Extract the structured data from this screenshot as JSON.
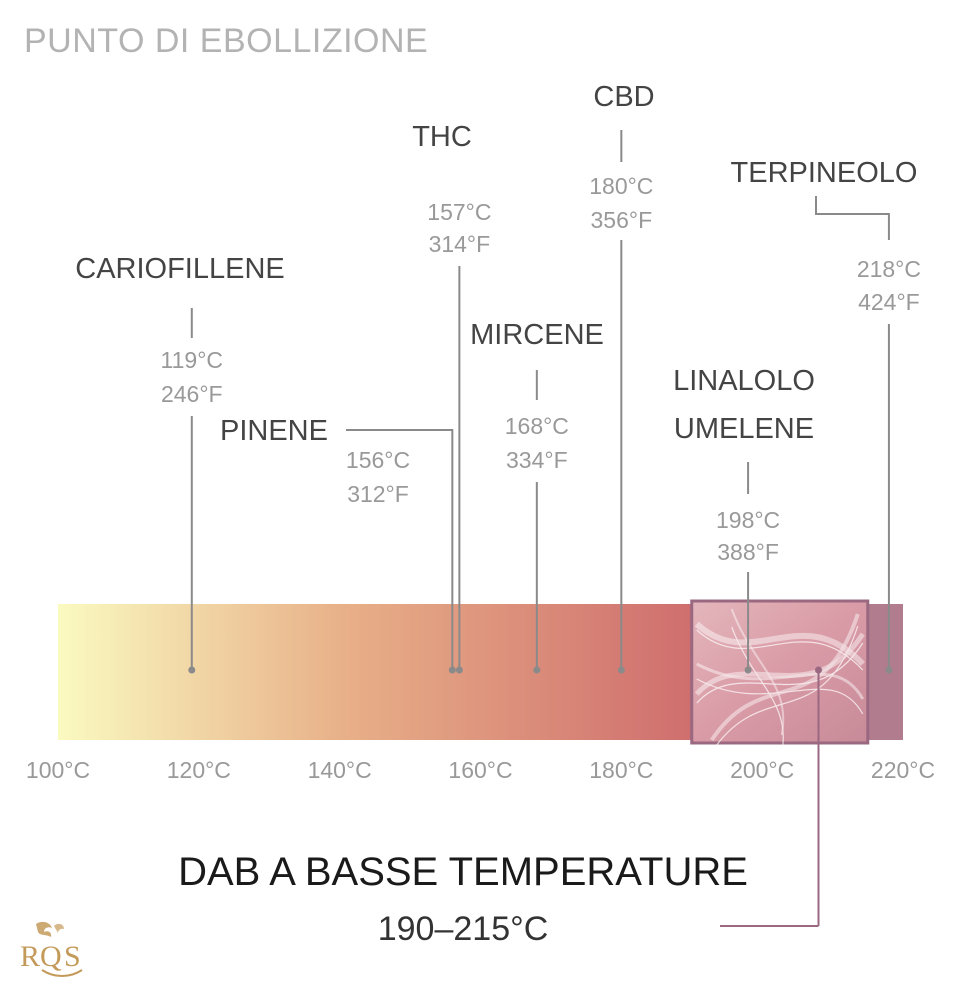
{
  "title": "PUNTO DI EBOLLIZIONE",
  "colors": {
    "bar_start": "#fafac0",
    "bar_mid": "#e8b088",
    "bar_end": "#cf6e6e",
    "bar_tail": "#b07c8e",
    "highlight_border": "#9a6880",
    "callout_line": "#9a6880",
    "leader_line": "#8a8a8a",
    "name_text": "#444444",
    "value_text": "#999999",
    "axis_text": "#999999",
    "logo_gold": "#c49a5a"
  },
  "chart_data": {
    "type": "annotated_scale",
    "xlim": [
      100,
      220
    ],
    "axis_ticks": [
      "100°C",
      "120°C",
      "140°C",
      "160°C",
      "180°C",
      "200°C",
      "220°C"
    ],
    "compounds": [
      {
        "name": "CARIOFILLENE",
        "celsius": "119°C",
        "fahrenheit": "246°F",
        "value": 119
      },
      {
        "name": "PINENE",
        "celsius": "156°C",
        "fahrenheit": "312°F",
        "value": 156
      },
      {
        "name": "THC",
        "celsius": "157°C",
        "fahrenheit": "314°F",
        "value": 157
      },
      {
        "name": "MIRCENE",
        "celsius": "168°C",
        "fahrenheit": "334°F",
        "value": 168
      },
      {
        "name": "CBD",
        "celsius": "180°C",
        "fahrenheit": "356°F",
        "value": 180
      },
      {
        "name": "LINALOLO\nUMELENE",
        "celsius": "198°C",
        "fahrenheit": "388°F",
        "value": 198
      },
      {
        "name": "TERPINEOLO",
        "celsius": "218°C",
        "fahrenheit": "424°F",
        "value": 218
      }
    ],
    "highlight_range": {
      "title": "DAB A BASSE TEMPERATURE",
      "label": "190–215°C",
      "from": 190,
      "to": 215
    }
  }
}
